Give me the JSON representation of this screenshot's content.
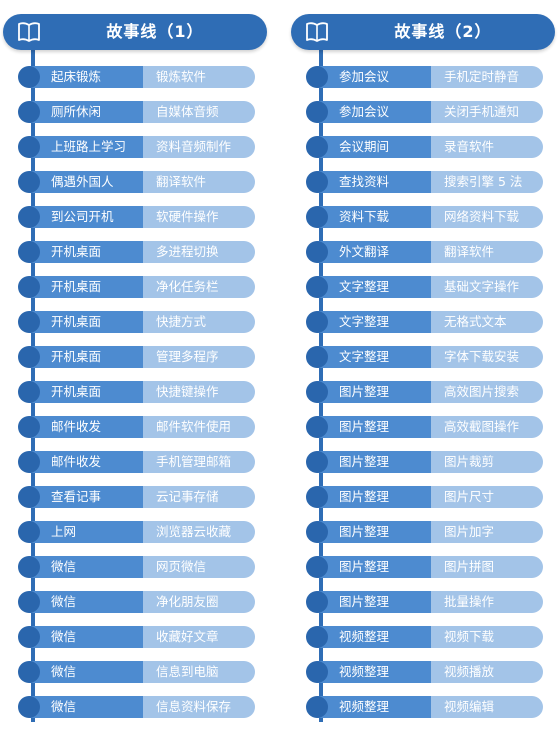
{
  "columns": [
    {
      "title": "故事线（1）",
      "rows": [
        {
          "event": "起床锻炼",
          "skill": "锻炼软件"
        },
        {
          "event": "厕所休闲",
          "skill": "自媒体音频"
        },
        {
          "event": "上班路上学习",
          "skill": "资料音频制作"
        },
        {
          "event": "偶遇外国人",
          "skill": "翻译软件"
        },
        {
          "event": "到公司开机",
          "skill": "软硬件操作"
        },
        {
          "event": "开机桌面",
          "skill": "多进程切换"
        },
        {
          "event": "开机桌面",
          "skill": "净化任务栏"
        },
        {
          "event": "开机桌面",
          "skill": "快捷方式"
        },
        {
          "event": "开机桌面",
          "skill": "管理多程序"
        },
        {
          "event": "开机桌面",
          "skill": "快捷键操作"
        },
        {
          "event": "邮件收发",
          "skill": "邮件软件使用"
        },
        {
          "event": "邮件收发",
          "skill": "手机管理邮箱"
        },
        {
          "event": "查看记事",
          "skill": "云记事存储"
        },
        {
          "event": "上网",
          "skill": "浏览器云收藏"
        },
        {
          "event": "微信",
          "skill": "网页微信"
        },
        {
          "event": "微信",
          "skill": "净化朋友圈"
        },
        {
          "event": "微信",
          "skill": "收藏好文章"
        },
        {
          "event": "微信",
          "skill": "信息到电脑"
        },
        {
          "event": "微信",
          "skill": "信息资料保存"
        }
      ]
    },
    {
      "title": "故事线（2）",
      "rows": [
        {
          "event": "参加会议",
          "skill": "手机定时静音"
        },
        {
          "event": "参加会议",
          "skill": "关闭手机通知"
        },
        {
          "event": "会议期间",
          "skill": "录音软件"
        },
        {
          "event": "查找资料",
          "skill": "搜索引擎 5 法"
        },
        {
          "event": "资料下载",
          "skill": "网络资料下载"
        },
        {
          "event": "外文翻译",
          "skill": "翻译软件"
        },
        {
          "event": "文字整理",
          "skill": "基础文字操作"
        },
        {
          "event": "文字整理",
          "skill": "无格式文本"
        },
        {
          "event": "文字整理",
          "skill": "字体下载安装"
        },
        {
          "event": "图片整理",
          "skill": "高效图片搜索"
        },
        {
          "event": "图片整理",
          "skill": "高效截图操作"
        },
        {
          "event": "图片整理",
          "skill": "图片裁剪"
        },
        {
          "event": "图片整理",
          "skill": "图片尺寸"
        },
        {
          "event": "图片整理",
          "skill": "图片加字"
        },
        {
          "event": "图片整理",
          "skill": "图片拼图"
        },
        {
          "event": "图片整理",
          "skill": "批量操作"
        },
        {
          "event": "视频整理",
          "skill": "视频下载"
        },
        {
          "event": "视频整理",
          "skill": "视频播放"
        },
        {
          "event": "视频整理",
          "skill": "视频编辑"
        }
      ]
    }
  ],
  "icons": {
    "header": "book-icon"
  },
  "colors": {
    "header": "#2f6db5",
    "event_cell": "#4d8bd0",
    "skill_cell": "#a3c4e8",
    "dot": "#2a66ad"
  }
}
